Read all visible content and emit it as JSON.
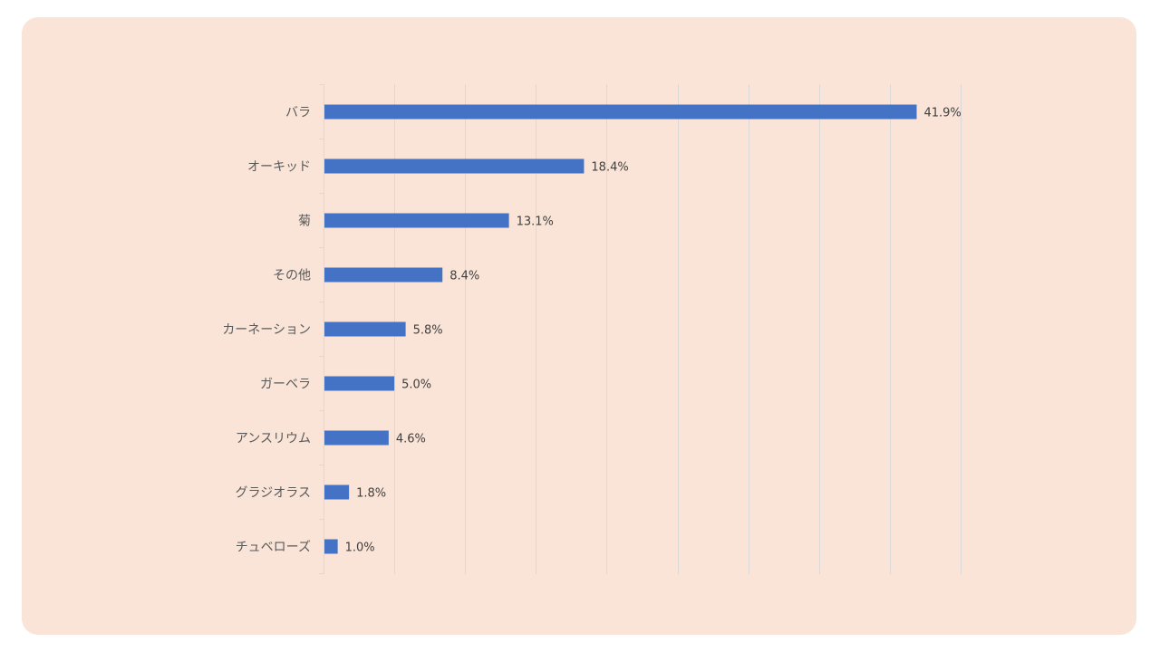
{
  "chart_data": {
    "type": "bar",
    "orientation": "horizontal",
    "categories": [
      "バラ",
      "オーキッド",
      "菊",
      "その他",
      "カーネーション",
      "ガーベラ",
      "アンスリウム",
      "グラジオラス",
      "チュベローズ"
    ],
    "values": [
      41.9,
      18.4,
      13.1,
      8.4,
      5.8,
      5.0,
      4.6,
      1.8,
      1.0
    ],
    "data_labels": [
      "41.9%",
      "18.4%",
      "13.1%",
      "8.4%",
      "5.8%",
      "5.0%",
      "4.6%",
      "1.8%",
      "1.0%"
    ],
    "xlim": [
      0,
      45
    ],
    "x_gridline_step": 5,
    "grid": true,
    "x_tick_labels_shown": false,
    "bar_color": "#4472c4",
    "background_color": "#f9e4d7"
  }
}
